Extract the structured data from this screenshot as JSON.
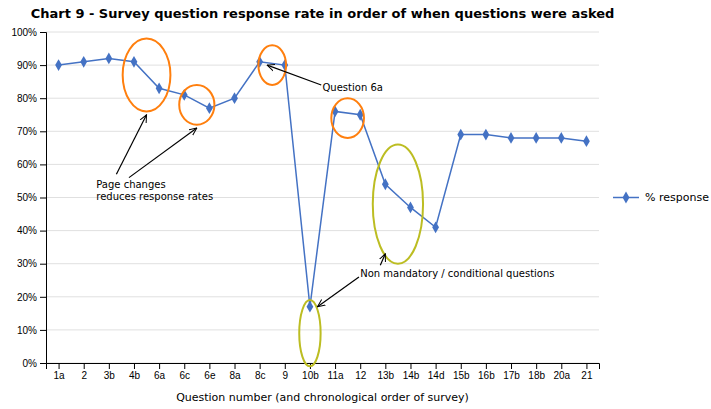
{
  "chart_data": {
    "type": "line",
    "title": "Chart 9 - Survey question response rate in order of when questions were asked",
    "xlabel": "Question number (and chronological order of survey)",
    "categories": [
      "1a",
      "2",
      "3b",
      "4b",
      "6a",
      "6c",
      "6e",
      "8a",
      "8c",
      "9",
      "10b",
      "11a",
      "12",
      "13b",
      "14b",
      "14d",
      "15b",
      "16b",
      "17b",
      "18b",
      "20a",
      "21"
    ],
    "series": [
      {
        "name": "% response",
        "color": "#4472C4",
        "marker": "diamond",
        "values": [
          90,
          91,
          92,
          91,
          83,
          81,
          77,
          80,
          91,
          90,
          17,
          76,
          75,
          54,
          47,
          41,
          69,
          69,
          68,
          68,
          68,
          67
        ]
      }
    ],
    "ylim": [
      0,
      100
    ],
    "yticks": [
      {
        "value": 0,
        "label": "0%"
      },
      {
        "value": 10,
        "label": "10%"
      },
      {
        "value": 20,
        "label": "20%"
      },
      {
        "value": 30,
        "label": "30%"
      },
      {
        "value": 40,
        "label": "40%"
      },
      {
        "value": 50,
        "label": "50%"
      },
      {
        "value": 60,
        "label": "60%"
      },
      {
        "value": 70,
        "label": "70%"
      },
      {
        "value": 80,
        "label": "80%"
      },
      {
        "value": 90,
        "label": "90%"
      },
      {
        "value": 100,
        "label": "100%"
      }
    ],
    "grid": true,
    "legend": "right",
    "annotations": [
      "Page changes\nreduces response rates",
      "Question 6a",
      "Non mandatory / conditional questions"
    ]
  }
}
